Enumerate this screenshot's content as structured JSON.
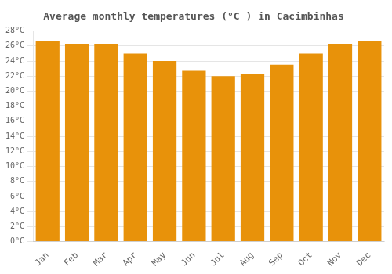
{
  "chart_data": {
    "type": "bar",
    "title": "Average monthly temperatures (°C ) in Cacimbinhas",
    "categories": [
      "Jan",
      "Feb",
      "Mar",
      "Apr",
      "May",
      "Jun",
      "Jul",
      "Aug",
      "Sep",
      "Oct",
      "Nov",
      "Dec"
    ],
    "values": [
      26.7,
      26.3,
      26.3,
      25.0,
      24.0,
      22.7,
      22.0,
      22.3,
      23.5,
      25.0,
      26.3,
      26.7
    ],
    "color": "#E8920A",
    "ylim": [
      0,
      28
    ],
    "yticks": [
      {
        "value": 0,
        "label": "0°C"
      },
      {
        "value": 2,
        "label": "2°C"
      },
      {
        "value": 4,
        "label": "4°C"
      },
      {
        "value": 6,
        "label": "6°C"
      },
      {
        "value": 8,
        "label": "8°C"
      },
      {
        "value": 10,
        "label": "10°C"
      },
      {
        "value": 12,
        "label": "12°C"
      },
      {
        "value": 14,
        "label": "14°C"
      },
      {
        "value": 16,
        "label": "16°C"
      },
      {
        "value": 18,
        "label": "18°C"
      },
      {
        "value": 20,
        "label": "20°C"
      },
      {
        "value": 22,
        "label": "22°C"
      },
      {
        "value": 24,
        "label": "24°C"
      },
      {
        "value": 26,
        "label": "26°C"
      },
      {
        "value": 28,
        "label": "28°C"
      }
    ],
    "grid": true
  }
}
